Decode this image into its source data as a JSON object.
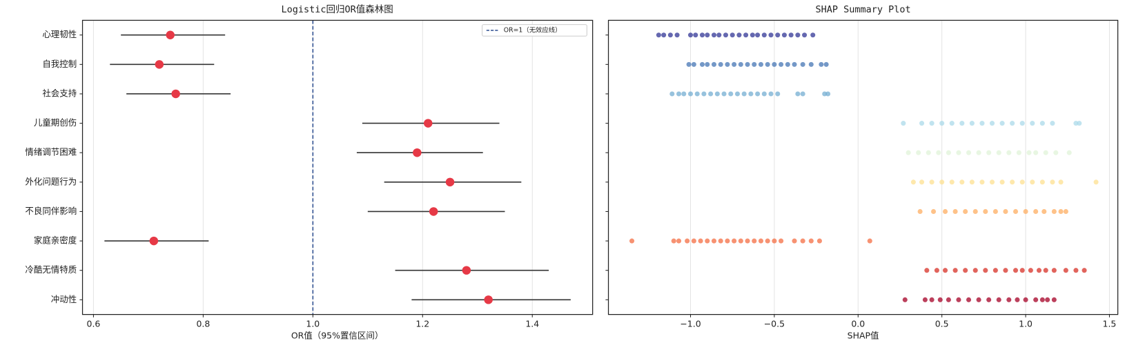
{
  "chart_data": [
    {
      "type": "forest",
      "title": "Logistic回归OR值森林图",
      "x_label": "OR值（95%置信区间）",
      "categories": [
        "心理韧性",
        "自我控制",
        "社会支持",
        "儿童期创伤",
        "情绪调节困难",
        "外化问题行为",
        "不良同伴影响",
        "家庭亲密度",
        "冷酷无情特质",
        "冲动性"
      ],
      "values": [
        0.74,
        0.72,
        0.75,
        1.21,
        1.19,
        1.25,
        1.22,
        0.71,
        1.28,
        1.32
      ],
      "lower": [
        0.65,
        0.63,
        0.66,
        1.09,
        1.08,
        1.13,
        1.1,
        0.62,
        1.15,
        1.18
      ],
      "upper": [
        0.84,
        0.82,
        0.85,
        1.34,
        1.31,
        1.38,
        1.35,
        0.81,
        1.43,
        1.47
      ],
      "color": "#e63946",
      "bar_color": "#333333",
      "reference": 1,
      "reference_label": "OR=1（无效应线）",
      "reference_color": "#2c4d8f",
      "legend": "upper right",
      "grid": true,
      "xlim": [
        0.58,
        1.51
      ],
      "xticks": [
        0.6,
        0.8,
        {
          "value": 1,
          "label": "1.0"
        },
        1.2,
        1.4
      ]
    },
    {
      "type": "strip",
      "title": "SHAP Summary Plot",
      "x_label": "SHAP值",
      "grid": true,
      "xlim": [
        -1.49,
        1.55
      ],
      "xticks": [
        {
          "value": -1,
          "label": "−1.0"
        },
        {
          "value": -0.5,
          "label": "−0.5"
        },
        {
          "value": 0,
          "label": "0.0"
        },
        0.5,
        {
          "value": 1,
          "label": "1.0"
        },
        1.5
      ],
      "series": [
        {
          "color": "#313695",
          "values": [
            -1.19,
            -1.16,
            -1.12,
            -1.08,
            -1.0,
            -0.97,
            -0.93,
            -0.9,
            -0.86,
            -0.83,
            -0.79,
            -0.75,
            -0.71,
            -0.67,
            -0.63,
            -0.6,
            -0.56,
            -0.52,
            -0.48,
            -0.44,
            -0.4,
            -0.36,
            -0.32,
            -0.27
          ]
        },
        {
          "color": "#4575b4",
          "values": [
            -1.01,
            -0.98,
            -0.93,
            -0.9,
            -0.86,
            -0.82,
            -0.78,
            -0.74,
            -0.7,
            -0.66,
            -0.62,
            -0.58,
            -0.54,
            -0.5,
            -0.46,
            -0.42,
            -0.38,
            -0.33,
            -0.28,
            -0.22,
            -0.19
          ]
        },
        {
          "color": "#74add1",
          "values": [
            -1.11,
            -1.07,
            -1.04,
            -1.0,
            -0.96,
            -0.92,
            -0.88,
            -0.84,
            -0.8,
            -0.76,
            -0.72,
            -0.68,
            -0.64,
            -0.6,
            -0.56,
            -0.52,
            -0.48,
            -0.36,
            -0.33,
            -0.2,
            -0.18
          ]
        },
        {
          "color": "#abd9e9",
          "values": [
            0.27,
            0.38,
            0.44,
            0.5,
            0.56,
            0.62,
            0.68,
            0.74,
            0.8,
            0.86,
            0.92,
            0.98,
            1.04,
            1.1,
            1.16,
            1.3,
            1.32
          ]
        },
        {
          "color": "#e0f3d8",
          "values": [
            0.3,
            0.36,
            0.42,
            0.48,
            0.54,
            0.6,
            0.66,
            0.72,
            0.78,
            0.84,
            0.9,
            0.96,
            1.02,
            1.06,
            1.12,
            1.18,
            1.26
          ]
        },
        {
          "color": "#fee090",
          "values": [
            0.33,
            0.38,
            0.44,
            0.5,
            0.56,
            0.62,
            0.68,
            0.74,
            0.8,
            0.86,
            0.92,
            0.98,
            1.04,
            1.1,
            1.16,
            1.21,
            1.42
          ]
        },
        {
          "color": "#fdae61",
          "values": [
            0.37,
            0.45,
            0.52,
            0.58,
            0.64,
            0.7,
            0.76,
            0.82,
            0.88,
            0.94,
            1.0,
            1.06,
            1.11,
            1.17,
            1.21,
            1.24
          ]
        },
        {
          "color": "#f46d43",
          "values": [
            -1.35,
            -1.1,
            -1.07,
            -1.02,
            -0.98,
            -0.94,
            -0.9,
            -0.86,
            -0.82,
            -0.78,
            -0.74,
            -0.7,
            -0.66,
            -0.62,
            -0.58,
            -0.54,
            -0.5,
            -0.46,
            -0.38,
            -0.33,
            -0.28,
            -0.23,
            0.07
          ]
        },
        {
          "color": "#d73027",
          "values": [
            0.41,
            0.47,
            0.52,
            0.58,
            0.64,
            0.7,
            0.76,
            0.82,
            0.88,
            0.94,
            0.98,
            1.03,
            1.08,
            1.12,
            1.17,
            1.24,
            1.3,
            1.35
          ]
        },
        {
          "color": "#a50026",
          "values": [
            0.28,
            0.4,
            0.44,
            0.49,
            0.54,
            0.6,
            0.66,
            0.72,
            0.78,
            0.84,
            0.9,
            0.95,
            1.0,
            1.06,
            1.1,
            1.13,
            1.17
          ]
        }
      ]
    }
  ]
}
